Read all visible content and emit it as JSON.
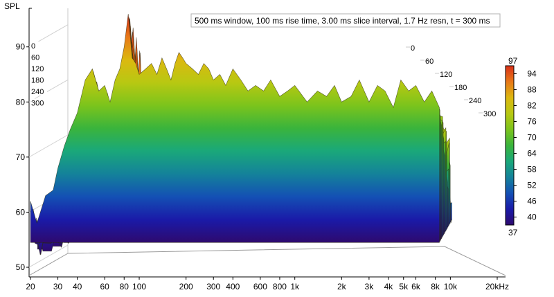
{
  "chart_data": {
    "type": "waterfall",
    "ylabel": "SPL",
    "info_box": "500 ms window, 100 ms rise time, 3.00 ms slice interval, 1.7 Hz resn, t = 300 ms",
    "x_ticks": [
      "20",
      "30",
      "40",
      "60",
      "80",
      "100",
      "200",
      "300",
      "400",
      "600",
      "800",
      "1k",
      "2k",
      "3k",
      "4k",
      "5k",
      "6k",
      "8k",
      "10k",
      "20kHz"
    ],
    "x_tick_values": [
      20,
      30,
      40,
      60,
      80,
      100,
      200,
      300,
      400,
      600,
      800,
      1000,
      2000,
      3000,
      4000,
      5000,
      6000,
      8000,
      10000,
      20000
    ],
    "y_ticks": [
      "50",
      "60",
      "70",
      "80",
      "90"
    ],
    "y_tick_values": [
      50,
      60,
      70,
      80,
      90
    ],
    "ylim": [
      49,
      97
    ],
    "xlim": [
      20,
      20000
    ],
    "time_ticks_left": [
      "0",
      "60",
      "120",
      "180",
      "240",
      "300"
    ],
    "time_ticks_right": [
      "0",
      "60",
      "120",
      "180",
      "240",
      "300"
    ],
    "time_unit": "ms",
    "colorbar": {
      "max_label": "97",
      "min_label": "37",
      "ticks": [
        "94",
        "88",
        "82",
        "76",
        "70",
        "64",
        "58",
        "52",
        "46",
        "40"
      ],
      "tick_values": [
        94,
        88,
        82,
        76,
        70,
        64,
        58,
        52,
        46,
        40
      ],
      "range": [
        37,
        97
      ],
      "stops": [
        "#2e0a6e",
        "#1a1aa8",
        "#1450b4",
        "#14829a",
        "#1aa87a",
        "#3ab43c",
        "#7cc41c",
        "#b8c812",
        "#dcb810",
        "#e87818",
        "#d83018"
      ]
    },
    "series": [
      {
        "x": [
          20,
          22,
          25,
          28,
          30,
          33,
          36,
          40,
          45,
          50,
          55,
          60,
          65,
          70,
          75,
          80,
          85,
          90,
          95,
          100,
          110,
          120,
          130,
          140,
          150,
          160,
          170,
          180,
          190,
          200,
          220,
          240,
          260,
          280,
          300,
          330,
          360,
          400,
          450,
          500,
          560,
          630,
          700,
          800,
          900,
          1000,
          1200,
          1400,
          1600,
          1800,
          2000,
          2300,
          2600,
          3000,
          3400,
          3800,
          4300,
          4800,
          5400,
          6000,
          6800,
          7600,
          8500
        ],
        "y": [
          62,
          58,
          63,
          64,
          68,
          72,
          75,
          78,
          84,
          86,
          82,
          83,
          80,
          84,
          86,
          90,
          96,
          88,
          87,
          85,
          86,
          87,
          85,
          88,
          86,
          84,
          87,
          89,
          88,
          87,
          86,
          85,
          87,
          86,
          84,
          85,
          83,
          86,
          84,
          82,
          83,
          82,
          84,
          81,
          82,
          83,
          80,
          82,
          81,
          83,
          80,
          81,
          84,
          80,
          83,
          82,
          79,
          84,
          82,
          83,
          80,
          82,
          79
        ]
      }
    ]
  }
}
